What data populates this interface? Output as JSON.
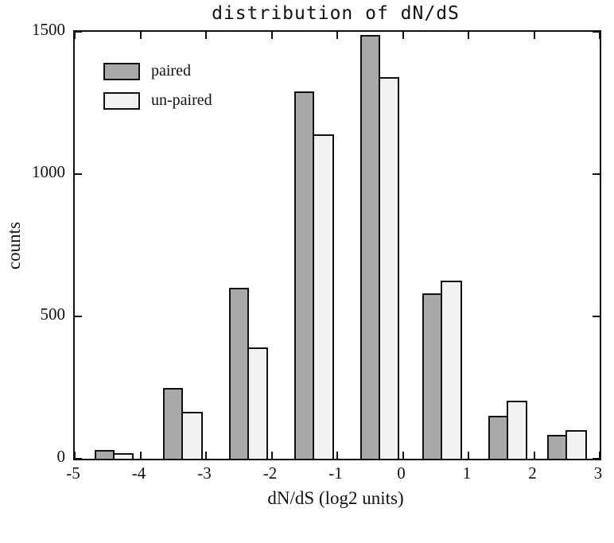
{
  "chart_data": {
    "type": "bar",
    "title": "distribution of dN/dS",
    "xlabel": "dN/dS (log2 units)",
    "ylabel": "counts",
    "xlim": [
      -5,
      3
    ],
    "ylim": [
      0,
      1500
    ],
    "xticks": [
      -5,
      -4,
      -3,
      -2,
      -1,
      0,
      1,
      2,
      3
    ],
    "yticks": [
      0,
      500,
      1000,
      1500
    ],
    "grid": false,
    "legend_position": "upper-left",
    "bin_centers": [
      -4.4,
      -3.35,
      -2.35,
      -1.35,
      -0.35,
      0.6,
      1.6,
      2.5
    ],
    "bar_width": 0.3,
    "series": [
      {
        "name": "paired",
        "key": "paired",
        "color": "#a9a9a9",
        "values": [
          30,
          250,
          600,
          1290,
          1490,
          580,
          150,
          85
        ]
      },
      {
        "name": "un-paired",
        "key": "unpaired",
        "color": "#f2f2f0",
        "values": [
          20,
          165,
          390,
          1140,
          1340,
          625,
          205,
          100
        ]
      }
    ]
  },
  "colors": {
    "axis": "#111111",
    "background": "#ffffff"
  }
}
